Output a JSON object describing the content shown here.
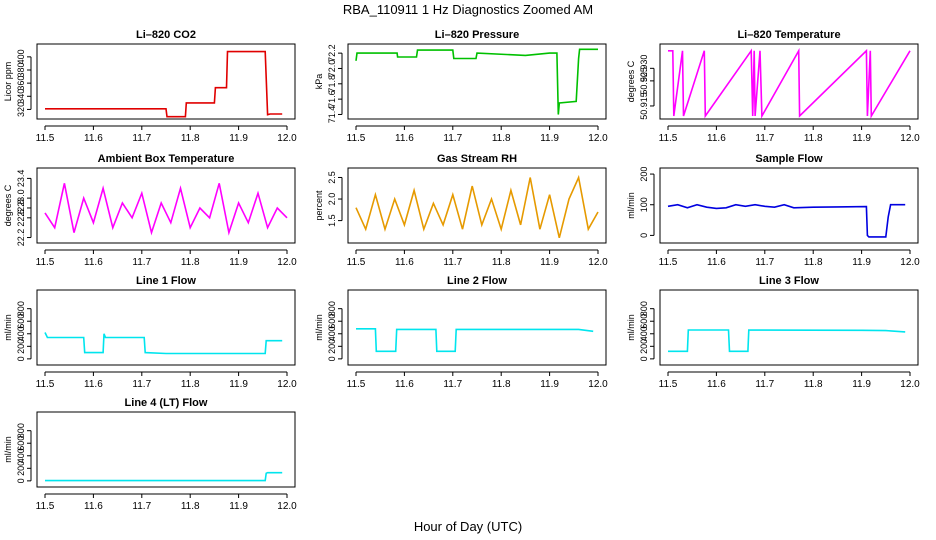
{
  "figure": {
    "title": "RBA_110911  1 Hz Diagnostics Zoomed AM",
    "xlabel": "Hour of Day (UTC)"
  },
  "chart_data": [
    {
      "type": "line",
      "title": "Li–820 CO2",
      "ylabel": "Licor ppm",
      "color": "#e00000",
      "xlim": [
        11.5,
        12.0
      ],
      "ylim": [
        310,
        415
      ],
      "xticks": [
        "11.5",
        "11.6",
        "11.7",
        "11.8",
        "11.9",
        "12.0"
      ],
      "yticks": [
        {
          "v": 320,
          "label": "320"
        },
        {
          "v": 340,
          "label": "340"
        },
        {
          "v": 360,
          "label": "360"
        },
        {
          "v": 380,
          "label": "380"
        },
        {
          "v": 400,
          "label": "400"
        }
      ],
      "x": [
        11.5,
        11.75,
        11.752,
        11.79,
        11.792,
        11.82,
        11.822,
        11.85,
        11.852,
        11.875,
        11.877,
        11.955,
        11.96,
        11.965,
        11.99
      ],
      "y": [
        321,
        321,
        309,
        309,
        330,
        330,
        330,
        330,
        353,
        353,
        408,
        408,
        312,
        313,
        313
      ]
    },
    {
      "type": "line",
      "title": "Li–820 Pressure",
      "ylabel": "kPa",
      "color": "#00c000",
      "xlim": [
        11.5,
        12.0
      ],
      "ylim": [
        71.38,
        72.28
      ],
      "xticks": [
        "11.5",
        "11.6",
        "11.7",
        "11.8",
        "11.9",
        "12.0"
      ],
      "yticks": [
        {
          "v": 71.4,
          "label": "71.4"
        },
        {
          "v": 71.6,
          "label": "71.6"
        },
        {
          "v": 71.8,
          "label": "71.8"
        },
        {
          "v": 72.0,
          "label": "72.0"
        },
        {
          "v": 72.2,
          "label": "72.2"
        }
      ],
      "x": [
        11.5,
        11.502,
        11.504,
        11.585,
        11.586,
        11.625,
        11.627,
        11.7,
        11.702,
        11.748,
        11.75,
        11.85,
        11.9,
        11.915,
        11.918,
        11.92,
        11.955,
        11.96,
        11.962,
        12.0
      ],
      "y": [
        72.1,
        72.2,
        72.2,
        72.2,
        72.15,
        72.15,
        72.24,
        72.24,
        72.13,
        72.13,
        72.2,
        72.17,
        72.2,
        72.2,
        71.4,
        71.55,
        71.57,
        72.13,
        72.25,
        72.25
      ]
    },
    {
      "type": "line",
      "title": "Li–820 Temperature",
      "ylabel": "degrees C",
      "color": "#ff00ff",
      "xlim": [
        11.5,
        12.0
      ],
      "ylim": [
        50.911,
        50.9385
      ],
      "xticks": [
        "11.5",
        "11.6",
        "11.7",
        "11.8",
        "11.9",
        "12.0"
      ],
      "yticks": [
        {
          "v": 50.915,
          "label": "50.915"
        },
        {
          "v": 50.925,
          "label": "50.925"
        },
        {
          "v": 50.93,
          "label": "50.930"
        }
      ],
      "x": [
        11.5,
        11.51,
        11.512,
        11.53,
        11.532,
        11.575,
        11.577,
        11.672,
        11.675,
        11.678,
        11.68,
        11.69,
        11.694,
        11.77,
        11.772,
        11.91,
        11.912,
        11.918,
        11.92,
        12.0
      ],
      "y": [
        50.937,
        50.937,
        50.911,
        50.937,
        50.911,
        50.937,
        50.911,
        50.937,
        50.911,
        50.937,
        50.911,
        50.937,
        50.911,
        50.937,
        50.911,
        50.937,
        50.911,
        50.937,
        50.911,
        50.937
      ]
    },
    {
      "type": "line",
      "title": "Ambient Box Temperature",
      "ylabel": "degrees C",
      "color": "#ff00ff",
      "xlim": [
        11.5,
        12.0
      ],
      "ylim": [
        22.15,
        23.55
      ],
      "xticks": [
        "11.5",
        "11.6",
        "11.7",
        "11.8",
        "11.9",
        "12.0"
      ],
      "yticks": [
        {
          "v": 22.2,
          "label": "22.2"
        },
        {
          "v": 22.6,
          "label": "22.6"
        },
        {
          "v": 22.8,
          "label": "22.8"
        },
        {
          "v": 23.0,
          "label": "23.0"
        },
        {
          "v": 23.4,
          "label": "23.4"
        }
      ],
      "x": [
        11.5,
        11.52,
        11.54,
        11.56,
        11.58,
        11.6,
        11.62,
        11.64,
        11.66,
        11.68,
        11.7,
        11.72,
        11.74,
        11.76,
        11.78,
        11.8,
        11.82,
        11.84,
        11.86,
        11.88,
        11.9,
        11.92,
        11.94,
        11.96,
        11.98,
        12.0
      ],
      "y": [
        22.7,
        22.4,
        23.3,
        22.3,
        23.0,
        22.5,
        23.2,
        22.4,
        22.9,
        22.6,
        23.1,
        22.3,
        22.9,
        22.5,
        23.2,
        22.4,
        22.8,
        22.6,
        23.3,
        22.3,
        22.9,
        22.5,
        23.1,
        22.4,
        22.8,
        22.6
      ]
    },
    {
      "type": "line",
      "title": "Gas Stream RH",
      "ylabel": "percent",
      "color": "#e69a00",
      "xlim": [
        11.5,
        12.0
      ],
      "ylim": [
        1.05,
        2.65
      ],
      "xticks": [
        "11.5",
        "11.6",
        "11.7",
        "11.8",
        "11.9",
        "12.0"
      ],
      "yticks": [
        {
          "v": 1.5,
          "label": "1.5"
        },
        {
          "v": 2.0,
          "label": "2.0"
        },
        {
          "v": 2.5,
          "label": "2.5"
        }
      ],
      "x": [
        11.5,
        11.52,
        11.54,
        11.56,
        11.58,
        11.6,
        11.62,
        11.64,
        11.66,
        11.68,
        11.7,
        11.72,
        11.74,
        11.76,
        11.78,
        11.8,
        11.82,
        11.84,
        11.86,
        11.88,
        11.9,
        11.92,
        11.94,
        11.96,
        11.98,
        12.0
      ],
      "y": [
        1.8,
        1.3,
        2.1,
        1.3,
        2.0,
        1.4,
        2.2,
        1.3,
        1.9,
        1.4,
        2.1,
        1.3,
        2.3,
        1.4,
        2.0,
        1.3,
        2.2,
        1.4,
        2.5,
        1.3,
        2.1,
        1.1,
        2.0,
        2.5,
        1.3,
        1.7
      ]
    },
    {
      "type": "line",
      "title": "Sample Flow",
      "ylabel": "ml/min",
      "color": "#0000e0",
      "xlim": [
        11.5,
        12.0
      ],
      "ylim": [
        -15,
        210
      ],
      "xticks": [
        "11.5",
        "11.6",
        "11.7",
        "11.8",
        "11.9",
        "12.0"
      ],
      "yticks": [
        {
          "v": 0,
          "label": "0"
        },
        {
          "v": 100,
          "label": "100"
        },
        {
          "v": 200,
          "label": "200"
        }
      ],
      "x": [
        11.5,
        11.52,
        11.54,
        11.56,
        11.58,
        11.6,
        11.62,
        11.64,
        11.66,
        11.68,
        11.7,
        11.72,
        11.74,
        11.76,
        11.8,
        11.85,
        11.91,
        11.912,
        11.915,
        11.95,
        11.955,
        11.96,
        11.99
      ],
      "y": [
        95,
        100,
        90,
        100,
        92,
        88,
        90,
        100,
        95,
        100,
        95,
        92,
        100,
        90,
        92,
        93,
        94,
        0,
        -5,
        -5,
        60,
        100,
        100
      ]
    },
    {
      "type": "line",
      "title": "Line 1 Flow",
      "ylabel": "ml/min",
      "color": "#00e5ee",
      "xlim": [
        11.5,
        12.0
      ],
      "ylim": [
        -50,
        1050
      ],
      "xticks": [
        "11.5",
        "11.6",
        "11.7",
        "11.8",
        "11.9",
        "12.0"
      ],
      "yticks": [
        {
          "v": 0,
          "label": "0"
        },
        {
          "v": 200,
          "label": "200"
        },
        {
          "v": 400,
          "label": "400"
        },
        {
          "v": 600,
          "label": "600"
        },
        {
          "v": 800,
          "label": "800"
        }
      ],
      "x": [
        11.5,
        11.505,
        11.58,
        11.582,
        11.62,
        11.622,
        11.625,
        11.705,
        11.707,
        11.75,
        11.955,
        11.957,
        11.99
      ],
      "y": [
        420,
        340,
        340,
        100,
        100,
        400,
        340,
        340,
        100,
        85,
        85,
        290,
        290
      ]
    },
    {
      "type": "line",
      "title": "Line 2 Flow",
      "ylabel": "ml/min",
      "color": "#00e5ee",
      "xlim": [
        11.5,
        12.0
      ],
      "ylim": [
        -50,
        1050
      ],
      "xticks": [
        "11.5",
        "11.6",
        "11.7",
        "11.8",
        "11.9",
        "12.0"
      ],
      "yticks": [
        {
          "v": 0,
          "label": "0"
        },
        {
          "v": 200,
          "label": "200"
        },
        {
          "v": 400,
          "label": "400"
        },
        {
          "v": 600,
          "label": "600"
        },
        {
          "v": 800,
          "label": "800"
        }
      ],
      "x": [
        11.5,
        11.54,
        11.542,
        11.582,
        11.584,
        11.665,
        11.667,
        11.705,
        11.707,
        11.96,
        11.99
      ],
      "y": [
        480,
        480,
        120,
        120,
        470,
        470,
        120,
        120,
        470,
        470,
        440
      ]
    },
    {
      "type": "line",
      "title": "Line 3 Flow",
      "ylabel": "ml/min",
      "color": "#00e5ee",
      "xlim": [
        11.5,
        12.0
      ],
      "ylim": [
        -50,
        1050
      ],
      "xticks": [
        "11.5",
        "11.6",
        "11.7",
        "11.8",
        "11.9",
        "12.0"
      ],
      "yticks": [
        {
          "v": 0,
          "label": "0"
        },
        {
          "v": 200,
          "label": "200"
        },
        {
          "v": 400,
          "label": "400"
        },
        {
          "v": 600,
          "label": "600"
        },
        {
          "v": 800,
          "label": "800"
        }
      ],
      "x": [
        11.5,
        11.54,
        11.542,
        11.625,
        11.627,
        11.665,
        11.667,
        11.9,
        11.95,
        11.99
      ],
      "y": [
        120,
        120,
        460,
        460,
        120,
        120,
        460,
        455,
        450,
        430
      ]
    },
    {
      "type": "line",
      "title": "Line 4 (LT) Flow",
      "ylabel": "ml/min",
      "color": "#00e5ee",
      "xlim": [
        11.5,
        12.0
      ],
      "ylim": [
        -50,
        1050
      ],
      "xticks": [
        "11.5",
        "11.6",
        "11.7",
        "11.8",
        "11.9",
        "12.0"
      ],
      "yticks": [
        {
          "v": 0,
          "label": "0"
        },
        {
          "v": 200,
          "label": "200"
        },
        {
          "v": 400,
          "label": "400"
        },
        {
          "v": 600,
          "label": "600"
        },
        {
          "v": 800,
          "label": "800"
        }
      ],
      "x": [
        11.5,
        11.955,
        11.957,
        11.96,
        11.99
      ],
      "y": [
        5,
        5,
        120,
        130,
        130
      ]
    }
  ]
}
